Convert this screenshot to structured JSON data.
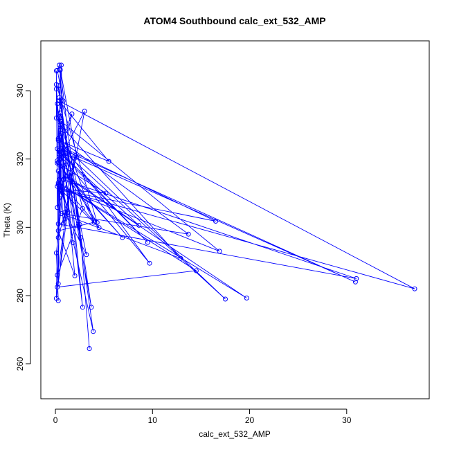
{
  "chart_data": {
    "type": "line",
    "title": "ATOM4 Southbound calc_ext_532_AMP",
    "xlabel": "calc_ext_532_AMP",
    "ylabel": "Theta (K)",
    "xlim": [
      -1.5,
      38.5
    ],
    "ylim": [
      249.8,
      354.6
    ],
    "xticks": [
      0,
      10,
      20,
      30
    ],
    "yticks": [
      260,
      280,
      300,
      320,
      340
    ],
    "grid": false,
    "legend": "none",
    "colors": {
      "series": "#0000ff",
      "axis": "#000000",
      "background": "#ffffff"
    },
    "marker": "open-circle",
    "series": [
      {
        "x": [
          3.5,
          2.5,
          0.5,
          1.0,
          0.3,
          0.5,
          2.8,
          0.2,
          2.0,
          0.1,
          0.3,
          0.6,
          0.4,
          0.2,
          1.8,
          0.5,
          0.3,
          3.0,
          0.8,
          0.1,
          0.4,
          1.0,
          3.2,
          0.6,
          0.2,
          2.2,
          0.5,
          0.3,
          1.5,
          4.0,
          0.2,
          2.6,
          0.4,
          0.8,
          31.0,
          0.3,
          1.2,
          16.5,
          0.5,
          37.0,
          0.4,
          5.5,
          0.3,
          17.5,
          1.1,
          30.9,
          0.6,
          0.2,
          14.5,
          0.3,
          19.7,
          1.0,
          0.5,
          5.2,
          0.2,
          6.9,
          1.2,
          8.6,
          0.4,
          9.5,
          0.8,
          2.0,
          0.3,
          4.0,
          0.5,
          12.9,
          0.6,
          13.7,
          0.3,
          9.7,
          0.4,
          4.5,
          0.2,
          16.9,
          0.6,
          2.8,
          1.0,
          1.7,
          0.5,
          0.1,
          4.3,
          0.2,
          0.3,
          3.7,
          0.3,
          3.9,
          0.4,
          1.3,
          0.3,
          0.2,
          0.1,
          0.1,
          0.8,
          0.2,
          0.4,
          0.6,
          0.9,
          0.1,
          0.3
        ],
        "y": [
          264.5,
          300.8,
          346.0,
          302.5,
          283.5,
          333.5,
          305.5,
          286.0,
          321.0,
          279.2,
          312.5,
          309.5,
          320.0,
          336.2,
          295.5,
          328.5,
          319.0,
          334.0,
          301.0,
          340.5,
          322.5,
          304.5,
          292.0,
          327.5,
          305.8,
          320.5,
          346.2,
          297.0,
          310.0,
          301.5,
          323.0,
          297.0,
          338.0,
          314.0,
          285.0,
          301.0,
          322.8,
          301.8,
          311.0,
          282.0,
          337.0,
          319.3,
          325.5,
          279.0,
          321.6,
          284.0,
          323.0,
          282.5,
          287.3,
          313.0,
          279.3,
          315.0,
          311.2,
          310.0,
          318.8,
          297.0,
          315.0,
          300.6,
          322.0,
          295.6,
          321.5,
          285.8,
          299.0,
          301.5,
          330.0,
          290.9,
          304.0,
          298.0,
          326.0,
          289.5,
          321.5,
          299.9,
          312.0,
          293.0,
          331.0,
          276.6,
          328.2,
          333.2,
          318.0,
          341.8,
          301.4,
          319.5,
          332.0,
          276.6,
          341.5,
          269.5,
          314.0,
          304.5,
          316.5,
          305.8,
          345.8,
          332.0,
          337.0,
          346.0,
          347.5,
          347.5,
          314.0,
          292.5,
          278.5
        ]
      }
    ]
  }
}
